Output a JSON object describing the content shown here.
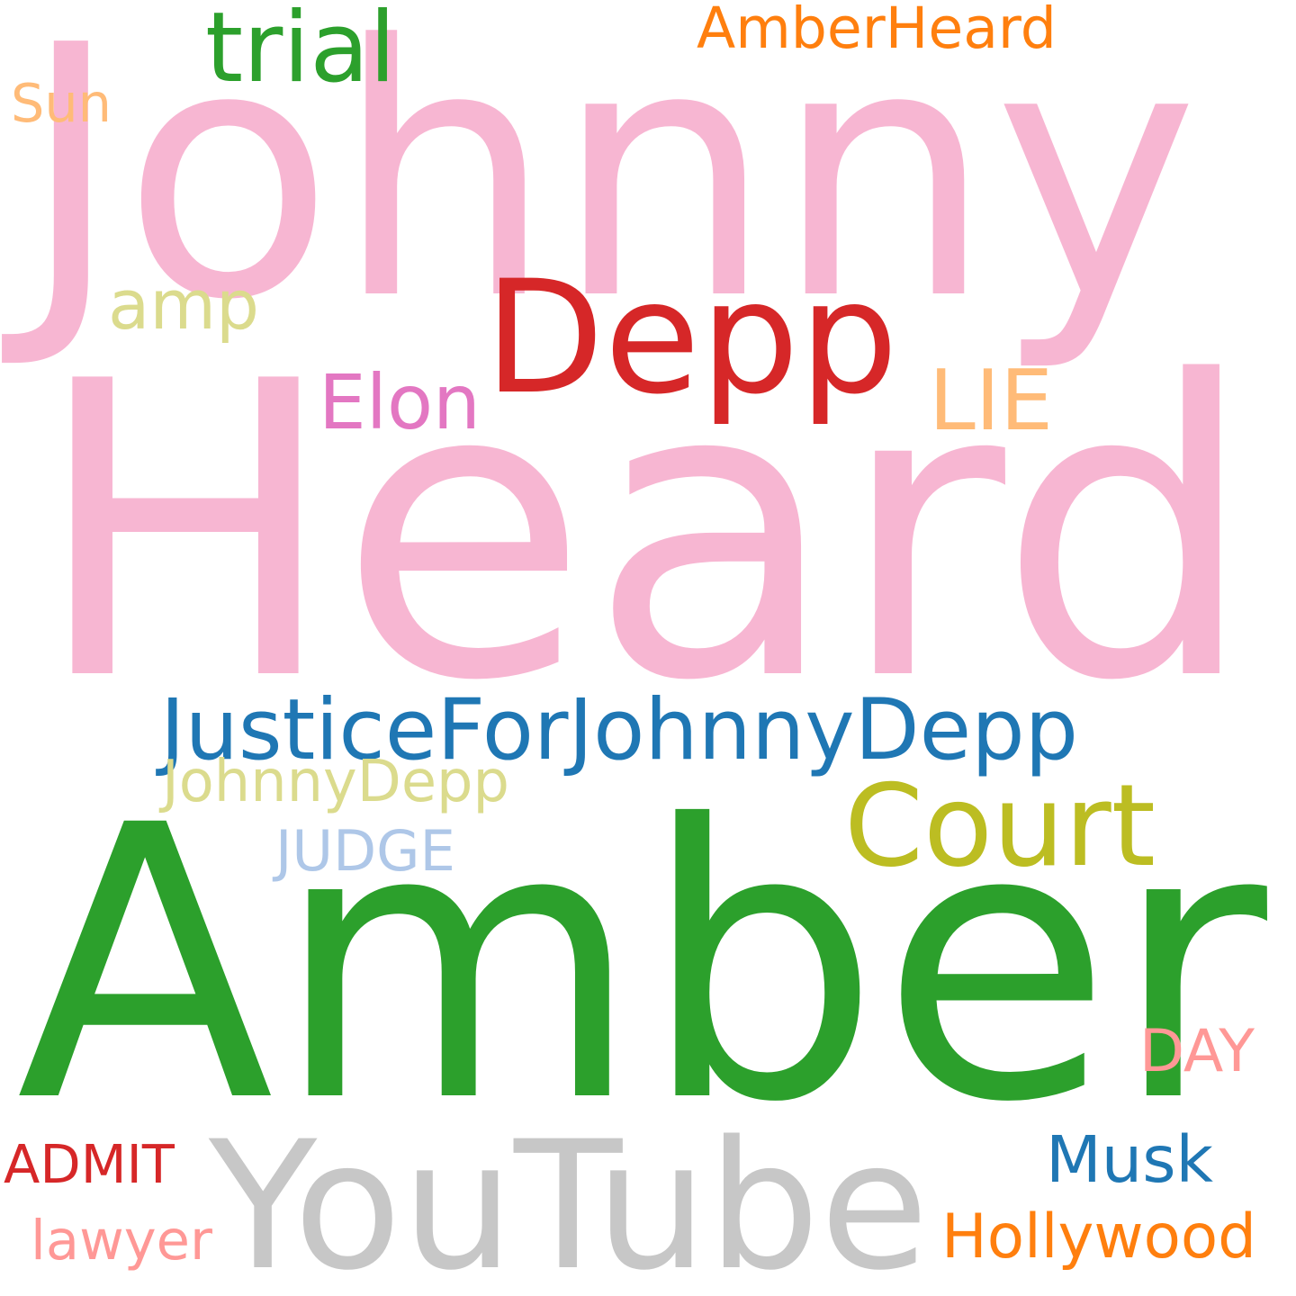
{
  "words": [
    {
      "text": "Johnny",
      "color": "#f7b6d2"
    },
    {
      "text": "Heard",
      "color": "#f7b6d2"
    },
    {
      "text": "Amber",
      "color": "#2ca02c"
    },
    {
      "text": "Depp",
      "color": "#d62728"
    },
    {
      "text": "YouTube",
      "color": "#c7c7c7"
    },
    {
      "text": "JusticeForJohnnyDepp",
      "color": "#1f77b4"
    },
    {
      "text": "Court",
      "color": "#bcbd22"
    },
    {
      "text": "amp",
      "color": "#dbdb8d"
    },
    {
      "text": "AmberHeard",
      "color": "#ff7f0e"
    },
    {
      "text": "trial",
      "color": "#2ca02c"
    },
    {
      "text": "Elon",
      "color": "#e377c2"
    },
    {
      "text": "LIE",
      "color": "#ffbb78"
    },
    {
      "text": "JohnnyDepp",
      "color": "#dbdb8d"
    },
    {
      "text": "JUDGE",
      "color": "#aec7e8"
    },
    {
      "text": "Musk",
      "color": "#1f77b4"
    },
    {
      "text": "Hollywood",
      "color": "#ff7f0e"
    },
    {
      "text": "DAY",
      "color": "#ff9896"
    },
    {
      "text": "ADMIT",
      "color": "#d62728"
    },
    {
      "text": "Sun",
      "color": "#ffbb78"
    },
    {
      "text": "lawyer",
      "color": "#ff9896"
    }
  ]
}
